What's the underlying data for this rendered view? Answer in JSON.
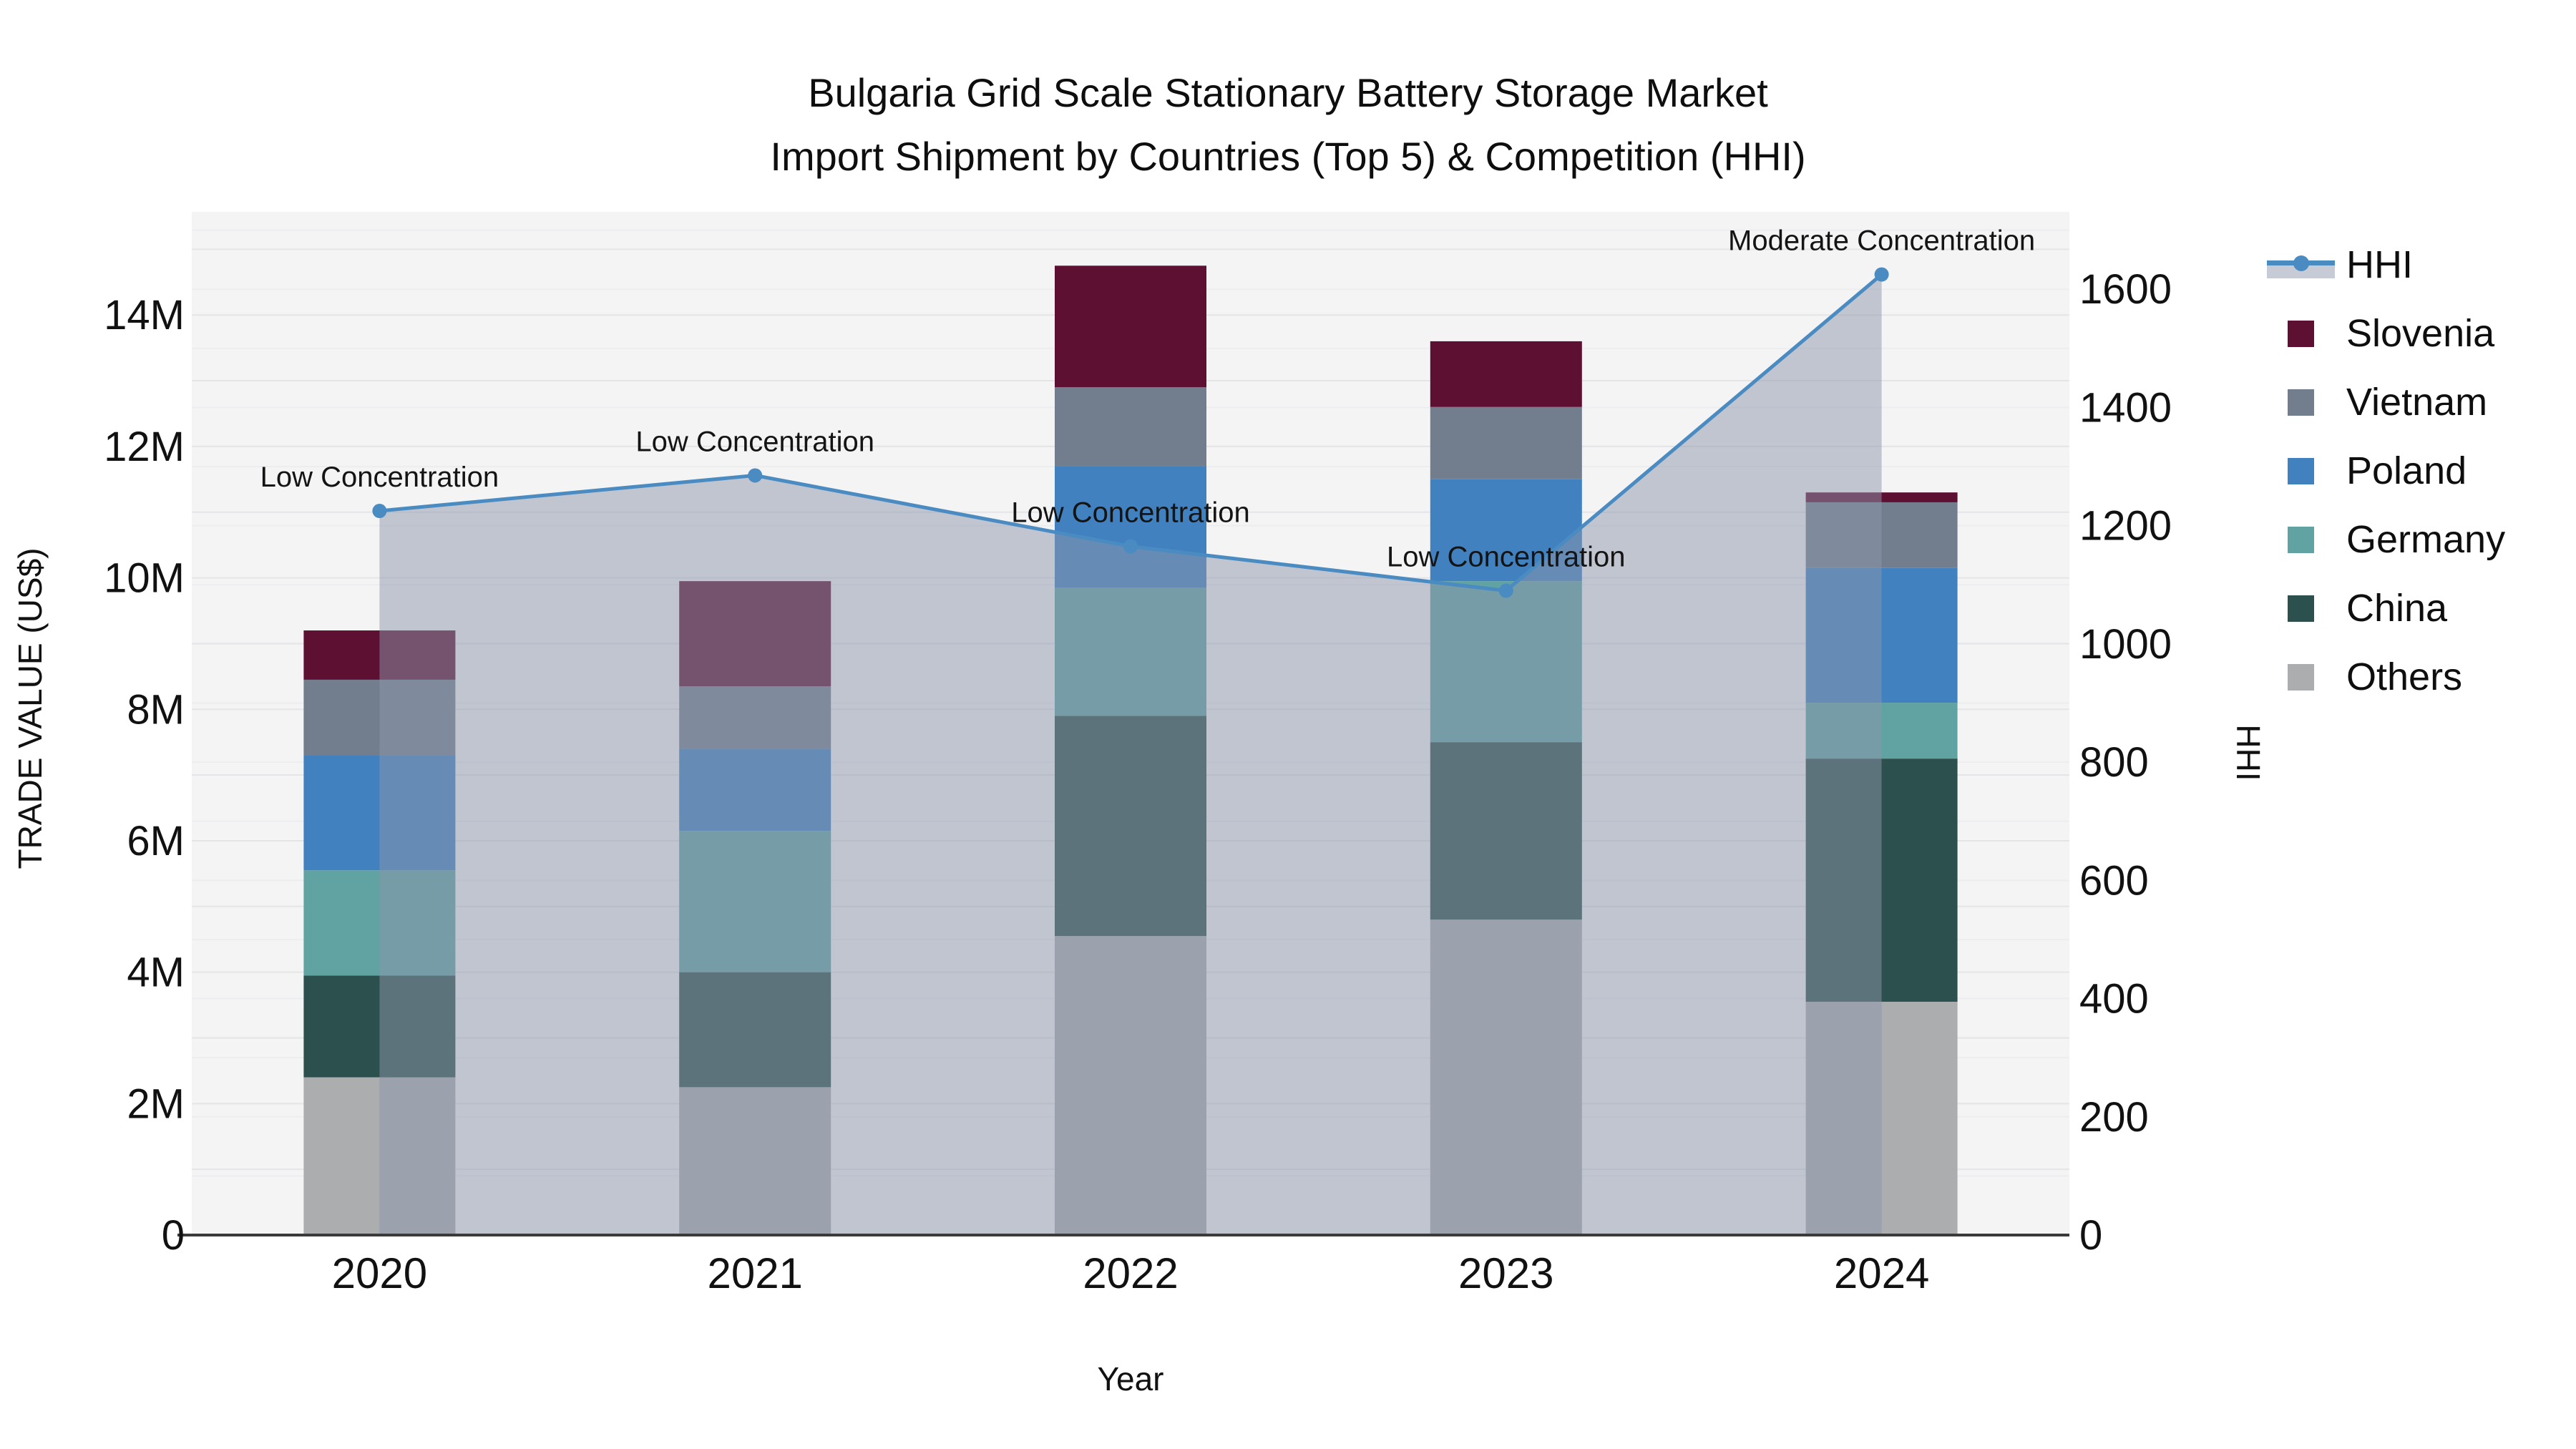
{
  "title": {
    "line1": "Bulgaria Grid Scale Stationary Battery Storage Market",
    "line2": "Import Shipment by Countries (Top 5) & Competition (HHI)"
  },
  "axes": {
    "x": {
      "title": "Year",
      "categories": [
        "2020",
        "2021",
        "2022",
        "2023",
        "2024"
      ]
    },
    "y_left": {
      "title": "TRADE VALUE (US$)",
      "tick_labels": [
        "0",
        "2M",
        "4M",
        "6M",
        "8M",
        "10M",
        "12M",
        "14M"
      ],
      "tick_values": [
        0,
        2000000,
        4000000,
        6000000,
        8000000,
        10000000,
        12000000,
        14000000
      ]
    },
    "y_right": {
      "title": "HHI",
      "tick_labels": [
        "0",
        "200",
        "400",
        "600",
        "800",
        "1000",
        "1200",
        "1400",
        "1600"
      ],
      "tick_values": [
        0,
        200,
        400,
        600,
        800,
        1000,
        1200,
        1400,
        1600
      ]
    }
  },
  "legend": {
    "items": [
      {
        "label": "HHI",
        "type": "line",
        "color": "#4a8bc2"
      },
      {
        "label": "Slovenia",
        "type": "swatch",
        "color": "#5e1033"
      },
      {
        "label": "Vietnam",
        "type": "swatch",
        "color": "#727e8d"
      },
      {
        "label": "Poland",
        "type": "swatch",
        "color": "#4181bf"
      },
      {
        "label": "Germany",
        "type": "swatch",
        "color": "#61a3a2"
      },
      {
        "label": "China",
        "type": "swatch",
        "color": "#2c504d"
      },
      {
        "label": "Others",
        "type": "swatch",
        "color": "#abadae"
      }
    ]
  },
  "chart_data": {
    "type": "bar",
    "subtype": "stacked-bars-with-secondary-axis-line",
    "title": "Bulgaria Grid Scale Stationary Battery Storage Market Import Shipment by Countries (Top 5) & Competition (HHI)",
    "xlabel": "Year",
    "ylabel_left": "TRADE VALUE (US$)",
    "ylabel_right": "HHI",
    "categories": [
      "2020",
      "2021",
      "2022",
      "2023",
      "2024"
    ],
    "unit": "US$",
    "values_note": "values estimated from pixel positions",
    "series": [
      {
        "name": "Slovenia",
        "color": "#5e1033",
        "values": [
          750000,
          1600000,
          1850000,
          1000000,
          150000
        ]
      },
      {
        "name": "Vietnam",
        "color": "#727e8d",
        "values": [
          1150000,
          950000,
          1200000,
          1100000,
          1000000
        ]
      },
      {
        "name": "Poland",
        "color": "#4181bf",
        "values": [
          1750000,
          1250000,
          1850000,
          1550000,
          2050000
        ]
      },
      {
        "name": "Germany",
        "color": "#61a3a2",
        "values": [
          1600000,
          2150000,
          1950000,
          2450000,
          850000
        ]
      },
      {
        "name": "China",
        "color": "#2c504d",
        "values": [
          1550000,
          1750000,
          3350000,
          2700000,
          3700000
        ]
      },
      {
        "name": "Others",
        "color": "#abadae",
        "values": [
          2400000,
          2250000,
          4550000,
          4800000,
          3550000
        ]
      }
    ],
    "stack_order_bottom_to_top": [
      "Others",
      "China",
      "Germany",
      "Poland",
      "Vietnam",
      "Slovenia"
    ],
    "line_series": {
      "name": "HHI",
      "axis": "right",
      "color": "#4a8bc2",
      "area_fill": "rgba(139,150,172,0.5)",
      "marker_radius": 10,
      "values": [
        1225,
        1285,
        1165,
        1090,
        1625
      ]
    },
    "annotations": [
      {
        "category": "2020",
        "text": "Low Concentration"
      },
      {
        "category": "2021",
        "text": "Low Concentration"
      },
      {
        "category": "2022",
        "text": "Low Concentration"
      },
      {
        "category": "2023",
        "text": "Low Concentration"
      },
      {
        "category": "2024",
        "text": "Moderate Concentration"
      }
    ],
    "ylim_left": [
      0,
      15570000
    ],
    "ylim_right": [
      0,
      1731
    ],
    "grid": true,
    "legend_position": "right-outside"
  },
  "colors": {
    "figure_bg": "#ffffff",
    "plot_bg": "#f4f4f5",
    "grid_left": "#e5e5e8",
    "grid_right": "#ededf0",
    "axis_line": "#3b3b3b",
    "text": "#111111"
  }
}
